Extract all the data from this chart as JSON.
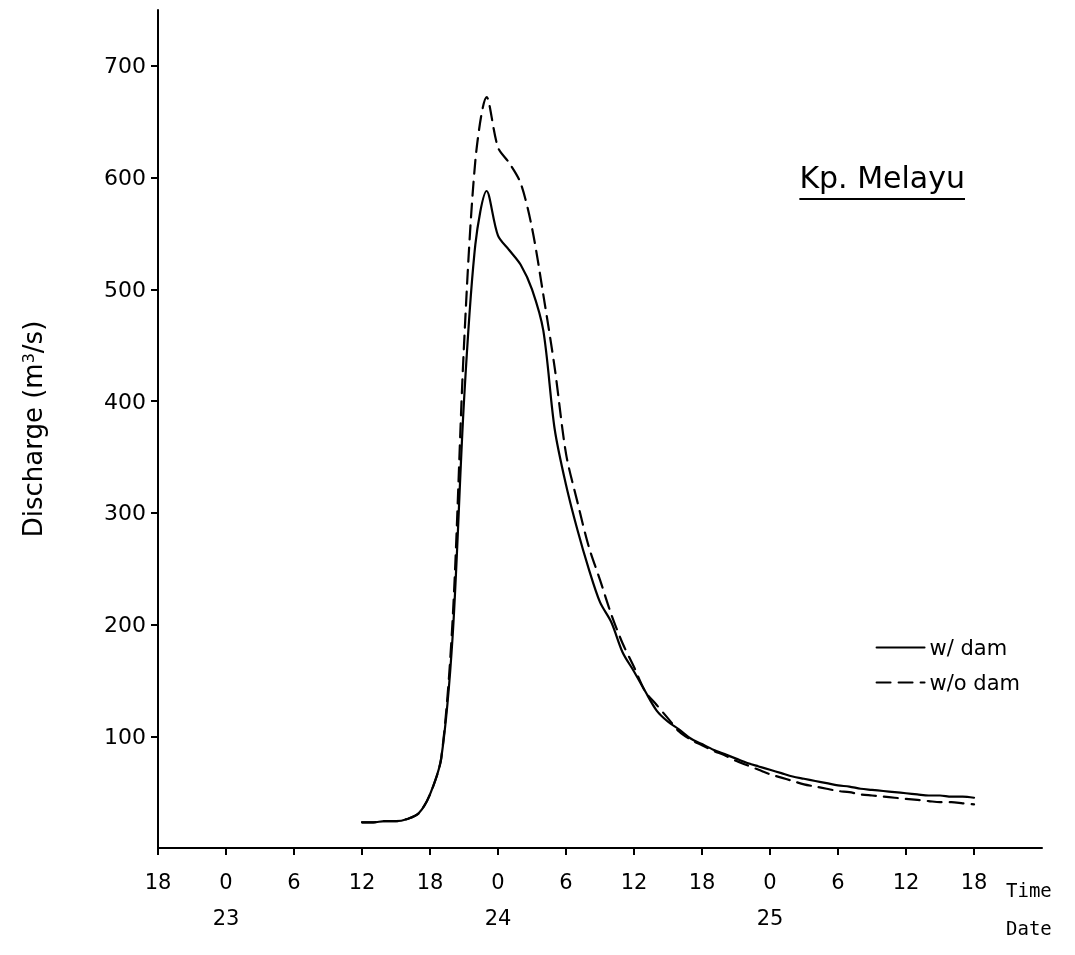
{
  "chart_data": {
    "type": "line",
    "title": "Kp. Melayu",
    "xlabel": "Time",
    "ylabel": "Discharge (m$^{3}$/s)",
    "annotations": [
      "Date"
    ],
    "categories": [
      "18",
      null,
      null,
      null,
      null,
      null,
      "0\n23",
      null,
      null,
      null,
      null,
      null,
      "6",
      null,
      null,
      null,
      null,
      null,
      "12",
      null,
      null,
      null,
      null,
      null,
      "18",
      null,
      null,
      null,
      null,
      null,
      "0\n24",
      null,
      null,
      null,
      null,
      null,
      "6",
      null,
      null,
      null,
      null,
      null,
      "12",
      null,
      null,
      null,
      null,
      null,
      "18",
      null,
      null,
      null,
      null,
      null,
      "0\n25",
      null,
      null,
      null,
      null,
      null,
      "6",
      null,
      null,
      null,
      null,
      null,
      "12",
      null,
      null,
      null,
      null,
      null,
      "18",
      null,
      null,
      null,
      null,
      null,
      null
    ],
    "ylim": [
      0,
      750
    ],
    "yticks": [
      100,
      200,
      300,
      400,
      500,
      600,
      700
    ],
    "grid": false,
    "legend": "right",
    "marker": "none",
    "series": [
      {
        "name": "w/ dam",
        "color": "#000000",
        "line_style": "solid",
        "values": [
          null,
          null,
          null,
          null,
          null,
          null,
          null,
          null,
          null,
          null,
          null,
          null,
          null,
          null,
          null,
          null,
          null,
          null,
          23,
          23,
          24,
          24,
          26,
          31,
          48,
          81,
          190,
          400,
          540,
          588,
          548,
          535,
          522,
          500,
          463,
          375,
          325,
          285,
          250,
          220,
          202,
          175,
          158,
          140,
          123,
          113,
          106,
          98,
          93,
          88,
          84,
          80,
          76,
          73,
          70,
          67,
          64,
          62,
          60,
          58,
          56,
          55,
          53,
          52,
          51,
          50,
          49,
          48,
          47,
          47,
          46,
          46,
          45,
          null,
          null,
          null,
          null,
          null,
          null
        ]
      },
      {
        "name": "w/o dam",
        "color": "#000000",
        "line_style": "dashed",
        "values": [
          null,
          null,
          null,
          null,
          null,
          null,
          null,
          null,
          null,
          null,
          null,
          null,
          null,
          null,
          null,
          null,
          null,
          null,
          23,
          23,
          24,
          24,
          26,
          31,
          48,
          81,
          205,
          450,
          615,
          672,
          627,
          613,
          595,
          555,
          495,
          430,
          353,
          310,
          270,
          240,
          209,
          183,
          162,
          140,
          128,
          116,
          104,
          97,
          92,
          87,
          83,
          78,
          74,
          70,
          66,
          63,
          60,
          57,
          55,
          53,
          51,
          50,
          48,
          47,
          46,
          45,
          44,
          43,
          42,
          41,
          41,
          40,
          39,
          null,
          null,
          null,
          null,
          null,
          null
        ]
      }
    ]
  }
}
